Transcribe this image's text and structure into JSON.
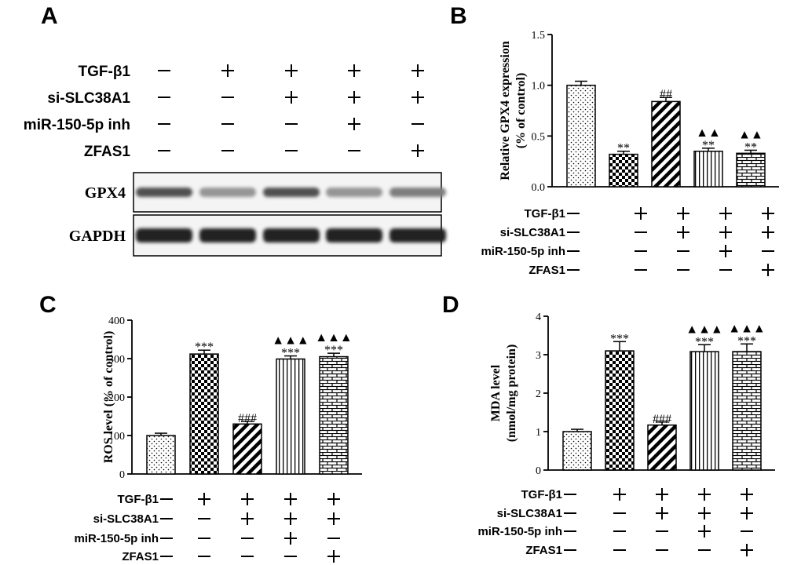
{
  "panels": {
    "A": {
      "letter": "A",
      "conditions": [
        {
          "label": "TGF-β1",
          "signs": [
            "−",
            "+",
            "+",
            "+",
            "+"
          ]
        },
        {
          "label": "si-SLC38A1",
          "signs": [
            "−",
            "−",
            "+",
            "+",
            "+"
          ]
        },
        {
          "label": "miR-150-5p inh",
          "signs": [
            "−",
            "−",
            "−",
            "+",
            "−"
          ]
        },
        {
          "label": "ZFAS1",
          "signs": [
            "−",
            "−",
            "−",
            "−",
            "+"
          ]
        }
      ],
      "blots": [
        {
          "label": "GPX4",
          "band_intensity": [
            0.75,
            0.45,
            0.75,
            0.45,
            0.55
          ]
        },
        {
          "label": "GAPDH",
          "band_intensity": [
            0.95,
            0.95,
            0.95,
            0.95,
            0.95
          ]
        }
      ]
    },
    "B": {
      "letter": "B"
    },
    "C": {
      "letter": "C"
    },
    "D": {
      "letter": "D"
    }
  },
  "condition_table": [
    {
      "label": "TGF-β1",
      "signs": [
        "−",
        "+",
        "+",
        "+",
        "+"
      ]
    },
    {
      "label": "si-SLC38A1",
      "signs": [
        "−",
        "−",
        "+",
        "+",
        "+"
      ]
    },
    {
      "label": "miR-150-5p inh",
      "signs": [
        "−",
        "−",
        "−",
        "+",
        "−"
      ]
    },
    {
      "label": "ZFAS1",
      "signs": [
        "−",
        "−",
        "−",
        "−",
        "+"
      ]
    }
  ],
  "chart_data": [
    {
      "panel": "B",
      "type": "bar",
      "ylabel": "Relative GPX4 expression (% of control)",
      "ylim": [
        0,
        1.5
      ],
      "yticks": [
        "0.0",
        "0.5",
        "1.0",
        "1.5"
      ],
      "values": [
        1.0,
        0.32,
        0.84,
        0.35,
        0.33
      ],
      "errors": [
        0.04,
        0.03,
        0.04,
        0.03,
        0.03
      ],
      "annotations": [
        {
          "bar": 1,
          "lines": [
            "**"
          ]
        },
        {
          "bar": 2,
          "lines": [
            "##"
          ]
        },
        {
          "bar": 3,
          "lines": [
            "▲▲",
            "**"
          ]
        },
        {
          "bar": 4,
          "lines": [
            "▲▲",
            "**"
          ]
        }
      ]
    },
    {
      "panel": "C",
      "type": "bar",
      "ylabel": "ROS level (% of control)",
      "ylim": [
        0,
        400
      ],
      "yticks": [
        "0",
        "100",
        "200",
        "300",
        "400"
      ],
      "values": [
        100,
        312,
        130,
        299,
        305
      ],
      "errors": [
        6,
        10,
        7,
        8,
        9
      ],
      "annotations": [
        {
          "bar": 1,
          "lines": [
            "***"
          ]
        },
        {
          "bar": 2,
          "lines": [
            "###"
          ]
        },
        {
          "bar": 3,
          "lines": [
            "▲▲▲",
            "***"
          ]
        },
        {
          "bar": 4,
          "lines": [
            "▲▲▲",
            "***"
          ]
        }
      ]
    },
    {
      "panel": "D",
      "type": "bar",
      "ylabel": "MDA level (nmol/mg protein)",
      "ylim": [
        0,
        4
      ],
      "yticks": [
        "0",
        "1",
        "2",
        "3",
        "4"
      ],
      "values": [
        1.0,
        3.1,
        1.17,
        3.08,
        3.08
      ],
      "errors": [
        0.06,
        0.24,
        0.08,
        0.18,
        0.2
      ],
      "annotations": [
        {
          "bar": 1,
          "lines": [
            "***"
          ]
        },
        {
          "bar": 2,
          "lines": [
            "###"
          ]
        },
        {
          "bar": 3,
          "lines": [
            "▲▲▲",
            "***"
          ]
        },
        {
          "bar": 4,
          "lines": [
            "▲▲▲",
            "***"
          ]
        }
      ]
    }
  ]
}
